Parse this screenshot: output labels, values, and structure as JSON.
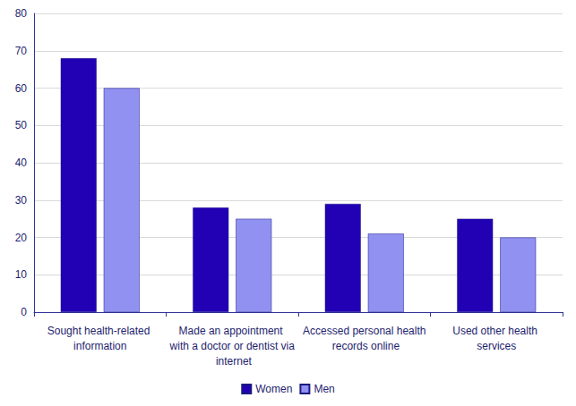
{
  "chart_data": {
    "type": "bar",
    "categories": [
      "Sought health-related information",
      "Made an appointment with a doctor or dentist via internet",
      "Accessed personal health records online",
      "Used other health services"
    ],
    "series": [
      {
        "name": "Women",
        "color": "#2200b4",
        "values": [
          68,
          28,
          29,
          25
        ]
      },
      {
        "name": "Men",
        "color": "#9191f2",
        "values": [
          60,
          25,
          21,
          20
        ]
      }
    ],
    "ylim": [
      0,
      80
    ],
    "yticks": [
      0,
      10,
      20,
      30,
      40,
      50,
      60,
      70,
      80
    ],
    "grid": true,
    "legend": "bottom"
  }
}
